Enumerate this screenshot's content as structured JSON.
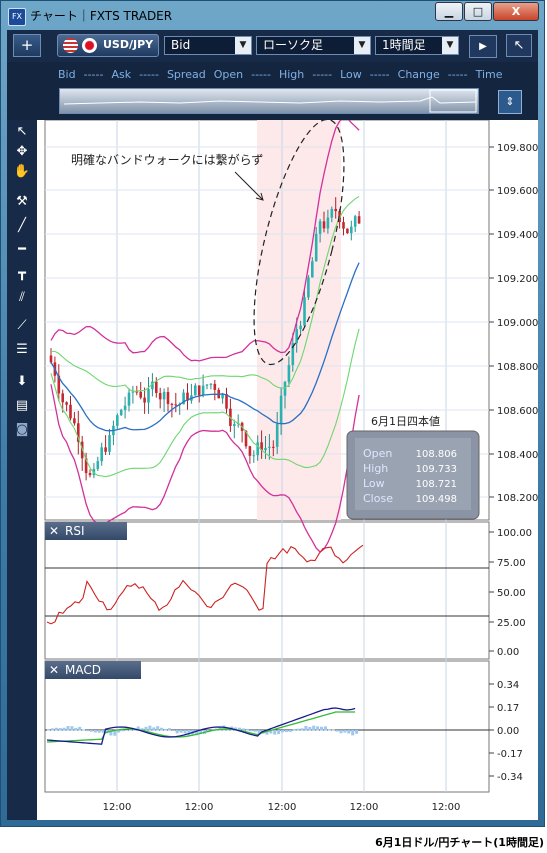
{
  "window": {
    "title": "チャート｜FXTS TRADER",
    "app_icon": "FX",
    "controls": {
      "minimize": "▁",
      "maximize": "□",
      "close": "X"
    }
  },
  "toolbar": {
    "add_label": "+",
    "symbol": "USD/JPY",
    "price_type": "Bid",
    "chart_type": "ローソク足",
    "timeframe": "1時間足"
  },
  "infobar": {
    "labels": [
      "Bid",
      "-----",
      "Ask",
      "-----",
      "Spread",
      "Open",
      "-----",
      "High",
      "-----",
      "Low",
      "-----",
      "Change",
      "-----",
      "Time"
    ]
  },
  "main_chart": {
    "annotation": "明確なバンドウォークには繋がらず",
    "y_ticks": [
      "109.800",
      "109.600",
      "109.400",
      "109.200",
      "109.000",
      "108.800",
      "108.600",
      "108.400",
      "108.200"
    ],
    "ohlc_box": {
      "title": "6月1日四本値",
      "rows": [
        {
          "label": "Open",
          "value": "108.806"
        },
        {
          "label": "High",
          "value": "109.733"
        },
        {
          "label": "Low",
          "value": "108.721"
        },
        {
          "label": "Close",
          "value": "109.498"
        }
      ]
    }
  },
  "rsi": {
    "name": "RSI",
    "y_ticks": [
      "100.00",
      "75.00",
      "50.00",
      "25.00",
      "0.00"
    ]
  },
  "macd": {
    "name": "MACD",
    "y_ticks": [
      "0.34",
      "0.17",
      "0.00",
      "-0.17",
      "-0.34"
    ]
  },
  "x_ticks": [
    "12:00",
    "12:00",
    "12:00",
    "12:00",
    "12:00"
  ],
  "caption": "6月1日ドル/円チャート(1時間足)",
  "colors": {
    "bb_outer": "#d4309a",
    "bb_inner": "#6fd66f",
    "mid": "#2a6fc4",
    "rsi": "#cc2222",
    "macd": "#1a1a8c",
    "signal": "#33bb33",
    "hist": "#9ec8ef",
    "highlight": "#fde8ea"
  }
}
